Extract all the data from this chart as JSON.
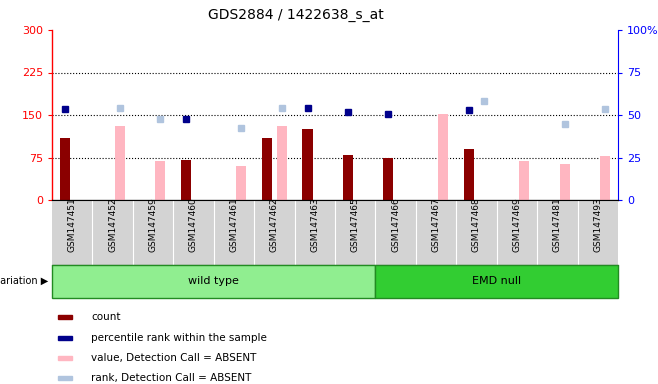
{
  "title": "GDS2884 / 1422638_s_at",
  "samples": [
    "GSM147451",
    "GSM147452",
    "GSM147459",
    "GSM147460",
    "GSM147461",
    "GSM147462",
    "GSM147463",
    "GSM147465",
    "GSM147466",
    "GSM147467",
    "GSM147468",
    "GSM147469",
    "GSM147481",
    "GSM147493"
  ],
  "count": [
    110,
    0,
    0,
    70,
    0,
    110,
    125,
    80,
    75,
    0,
    90,
    0,
    0,
    0
  ],
  "percentile_rank_left": [
    160,
    0,
    0,
    143,
    0,
    0,
    163,
    155,
    151,
    0,
    159,
    0,
    0,
    0
  ],
  "value_absent": [
    0,
    130,
    68,
    0,
    60,
    130,
    0,
    0,
    0,
    151,
    0,
    68,
    64,
    78
  ],
  "rank_absent_left": [
    0,
    163,
    143,
    0,
    127,
    163,
    0,
    0,
    0,
    0,
    175,
    0,
    135,
    160
  ],
  "ylim_left": [
    0,
    300
  ],
  "yticks_left": [
    0,
    75,
    150,
    225,
    300
  ],
  "ytick_labels_right": [
    "0",
    "25",
    "50",
    "75",
    "100%"
  ],
  "color_count": "#8B0000",
  "color_percentile": "#00008B",
  "color_value_absent": "#FFB6C1",
  "color_rank_absent": "#B0C4DE",
  "wildtype_count": 8,
  "emd_count": 6,
  "legend_items": [
    {
      "label": "count",
      "color": "#8B0000"
    },
    {
      "label": "percentile rank within the sample",
      "color": "#00008B"
    },
    {
      "label": "value, Detection Call = ABSENT",
      "color": "#FFB6C1"
    },
    {
      "label": "rank, Detection Call = ABSENT",
      "color": "#B0C4DE"
    }
  ]
}
